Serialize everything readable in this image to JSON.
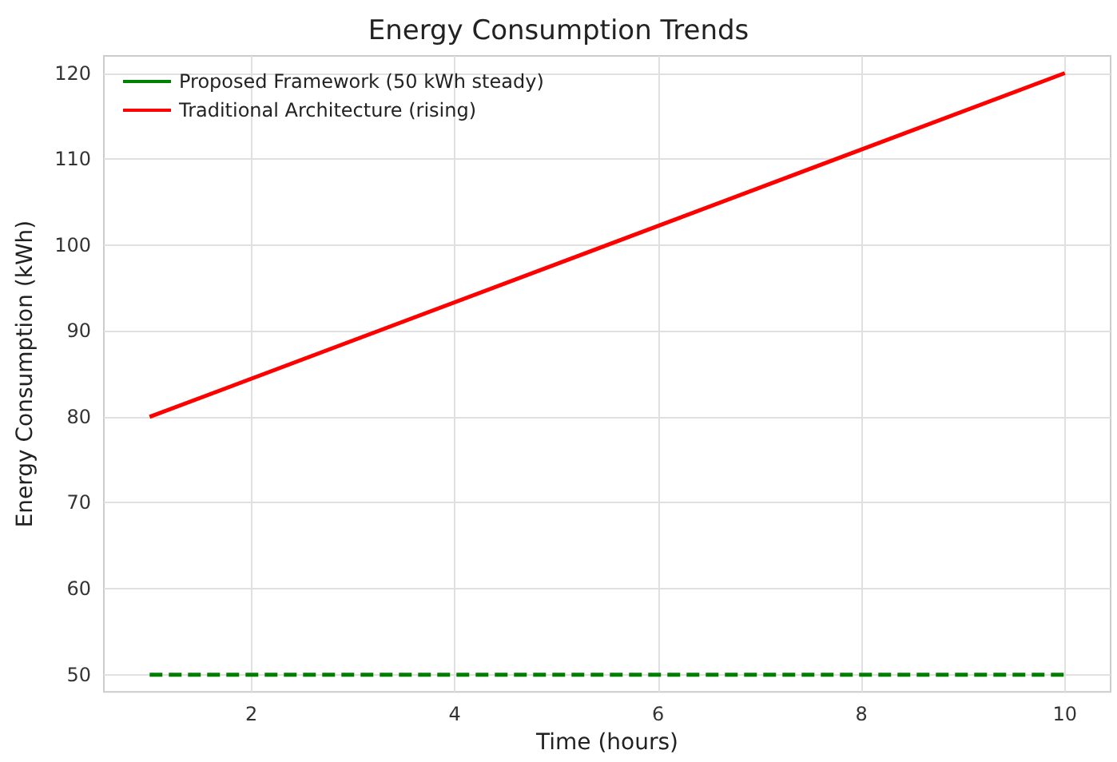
{
  "chart_data": {
    "type": "line",
    "title": "Energy Consumption Trends",
    "xlabel": "Time (hours)",
    "ylabel": "Energy Consumption (kWh)",
    "x": [
      1,
      10
    ],
    "series": [
      {
        "name": "Proposed Framework (50 kWh steady)",
        "color": "#008000",
        "values": [
          50,
          50
        ],
        "line_style": "dashed"
      },
      {
        "name": "Traditional Architecture (rising)",
        "color": "#ff0000",
        "values": [
          80,
          120
        ],
        "line_style": "solid"
      }
    ],
    "xlim": [
      0.55,
      10.45
    ],
    "xticks": [
      2,
      4,
      6,
      8,
      10
    ],
    "ylim": [
      48,
      122
    ],
    "yticks": [
      50,
      60,
      70,
      80,
      90,
      100,
      110,
      120
    ],
    "grid": true,
    "legend": "top left",
    "marker": "none"
  }
}
